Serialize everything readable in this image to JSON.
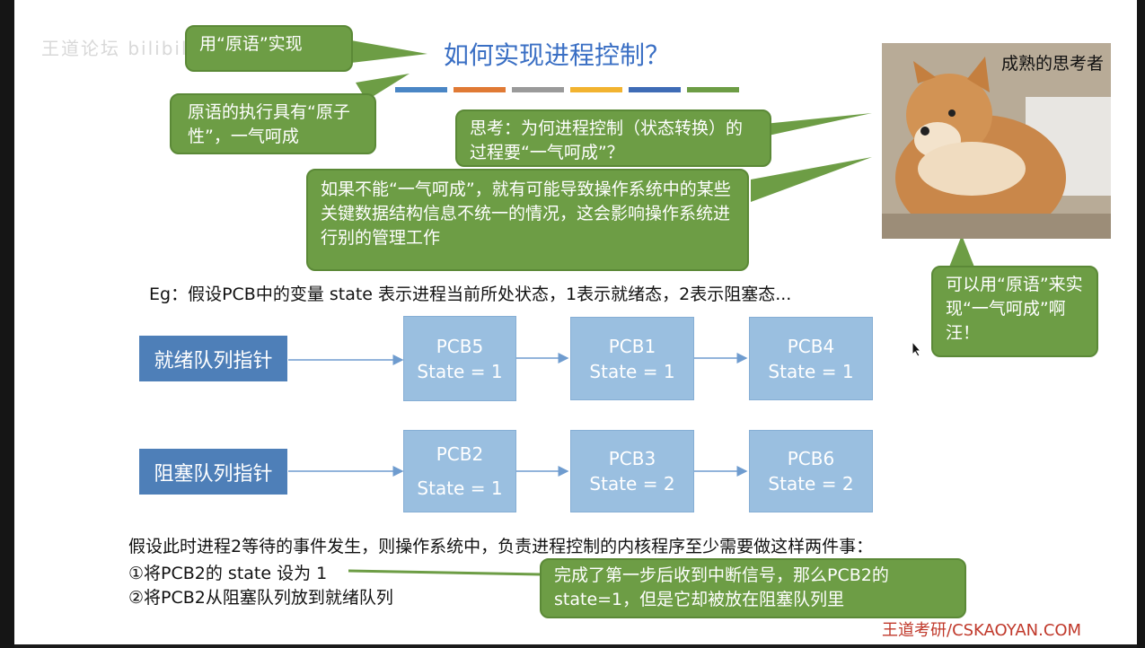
{
  "watermarks": {
    "top": "王道论坛 bilibili",
    "bottom": "王道考研/CSKAOYAN.COM"
  },
  "title": "如何实现进程控制？",
  "color_bar": [
    "#4a86c5",
    "#e07a35",
    "#9a9a9a",
    "#f2b330",
    "#3f6cb6",
    "#6d9d45"
  ],
  "bubbles": {
    "primitive": "用“原语”实现",
    "atomic": "原语的执行具有“原子性”，一气呵成",
    "think": "思考：为何进程控制（状态转换）的过程要“一气呵成”？",
    "reason": "如果不能“一气呵成”，就有可能导致操作系统中的某些关键数据结构信息不统一的情况，这会影响操作系统进行别的管理工作",
    "answer": "可以用“原语”来实现“一气呵成”啊汪！",
    "interrupt": "完成了第一步后收到中断信号，那么PCB2的state=1，但是它却被放在阻塞队列里"
  },
  "photo_caption": "成熟的思考者",
  "example_line": "Eg：假设PCB中的变量 state 表示进程当前所处状态，1表示就绪态，2表示阻塞态...",
  "ready_queue": {
    "label": "就绪队列指针",
    "pcbs": [
      {
        "name": "PCB5",
        "state": "State = 1"
      },
      {
        "name": "PCB1",
        "state": "State = 1"
      },
      {
        "name": "PCB4",
        "state": "State = 1"
      }
    ]
  },
  "blocked_queue": {
    "label": "阻塞队列指针",
    "pcbs": [
      {
        "name": "PCB2",
        "state": "State = 1"
      },
      {
        "name": "PCB3",
        "state": "State = 2"
      },
      {
        "name": "PCB6",
        "state": "State = 2"
      }
    ]
  },
  "scenario": {
    "intro": "假设此时进程2等待的事件发生，则操作系统中，负责进程控制的内核程序至少需要做这样两件事：",
    "step1": "①将PCB2的 state 设为 1",
    "step2": "②将PCB2从阻塞队列放到就绪队列"
  }
}
